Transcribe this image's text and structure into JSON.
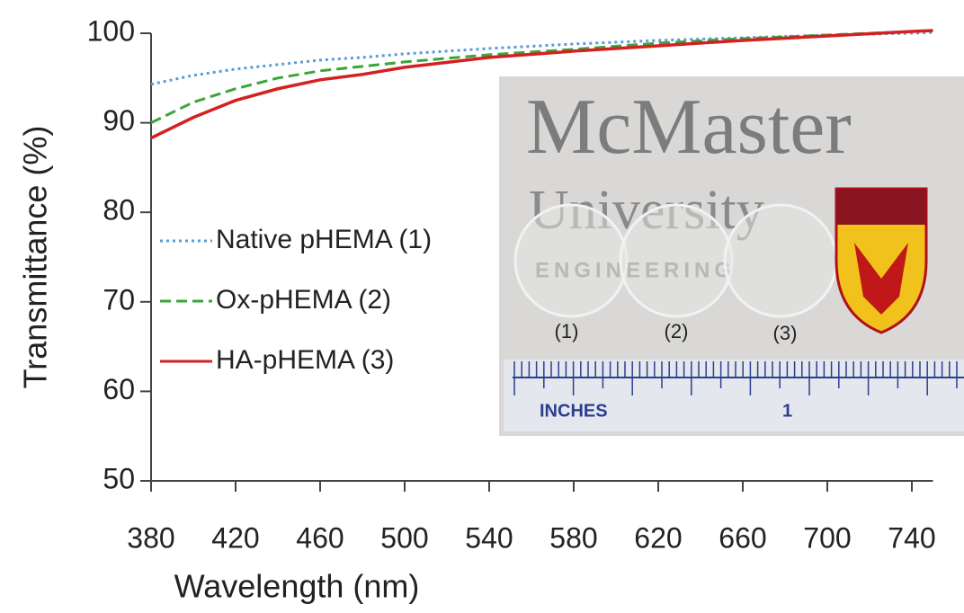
{
  "chart_data": {
    "type": "line",
    "xlabel": "Wavelength (nm)",
    "ylabel": "Transmittance (%)",
    "x": [
      380,
      400,
      420,
      440,
      460,
      480,
      500,
      540,
      580,
      620,
      660,
      700,
      740,
      750
    ],
    "series": [
      {
        "name": "Native pHEMA (1)",
        "color": "#5b9bd5",
        "linestyle": "dotted",
        "values": [
          94.3,
          95.3,
          96.0,
          96.5,
          97.0,
          97.3,
          97.7,
          98.3,
          98.8,
          99.2,
          99.5,
          99.8,
          100.0,
          100.1
        ]
      },
      {
        "name": "Ox-pHEMA (2)",
        "color": "#3aa53a",
        "linestyle": "dashed",
        "values": [
          90.0,
          92.3,
          93.8,
          95.0,
          95.8,
          96.3,
          96.8,
          97.6,
          98.2,
          98.9,
          99.4,
          99.8,
          100.2,
          100.3
        ]
      },
      {
        "name": "HA-pHEMA (3)",
        "color": "#d42020",
        "linestyle": "solid",
        "values": [
          88.3,
          90.6,
          92.5,
          93.8,
          94.8,
          95.4,
          96.2,
          97.3,
          98.0,
          98.6,
          99.2,
          99.7,
          100.2,
          100.3
        ]
      }
    ],
    "xlim": [
      380,
      750
    ],
    "xticks": [
      380,
      420,
      460,
      500,
      540,
      580,
      620,
      660,
      700,
      740
    ],
    "ylim": [
      50,
      100
    ],
    "yticks": [
      50,
      60,
      70,
      80,
      90,
      100
    ],
    "grid": false,
    "legend": "left"
  },
  "inset": {
    "title": "McMaster",
    "subtitle": "University",
    "department": "ENGINEERING",
    "samples": [
      "(1)",
      "(2)",
      "(3)"
    ],
    "ruler_unit": "INCHES",
    "ruler_mark": "1"
  }
}
